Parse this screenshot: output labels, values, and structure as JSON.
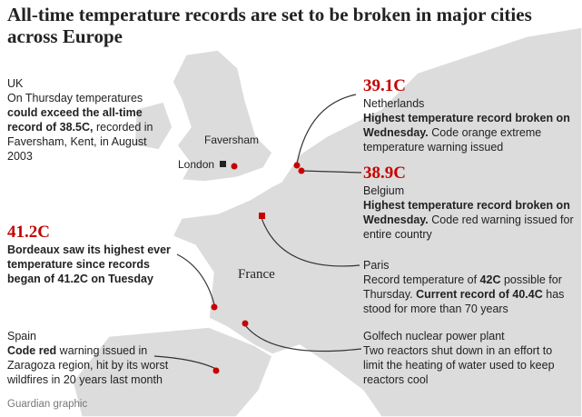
{
  "title": "All-time temperature records are set to be broken in major cities across Europe",
  "map_labels": {
    "faversham": "Faversham",
    "london": "London",
    "france": "France"
  },
  "annotations": [
    {
      "heading": "UK",
      "parts": [
        {
          "text": "On Thursday temperatures",
          "bold": false
        },
        {
          "text": "could exceed the all-time record of 38.5C,",
          "bold": true
        },
        {
          "text": "recorded in Faversham, Kent, in August 2003",
          "bold": false
        }
      ]
    },
    {
      "value": "39.1C",
      "heading": "Netherlands",
      "parts": [
        {
          "text": "Highest temperature record broken on Wednesday.",
          "bold": true
        },
        {
          "text": "Code orange extreme temperature warning issued",
          "bold": false
        }
      ]
    },
    {
      "value": "38.9C",
      "heading": "Belgium",
      "parts": [
        {
          "text": "Highest temperature record broken on Wednesday.",
          "bold": true
        },
        {
          "text": "Code red warning issued for entire country",
          "bold": false
        }
      ]
    },
    {
      "value": "41.2C",
      "parts": [
        {
          "text": "Bordeaux saw its highest ever temperature since records began of 41.2C on Tuesday",
          "bold": true
        }
      ]
    },
    {
      "heading": "Paris",
      "parts": [
        {
          "text": "Record temperature of",
          "bold": false
        },
        {
          "text": "42C",
          "bold": true
        },
        {
          "text": "possible for Thursday.",
          "bold": false
        },
        {
          "text": "Current record of 40.4C",
          "bold": true
        },
        {
          "text": "has stood for more than 70 years",
          "bold": false
        }
      ]
    },
    {
      "heading": "Spain",
      "parts": [
        {
          "text": "Code red",
          "bold": true
        },
        {
          "text": "warning issued in Zaragoza region, hit by its worst wildfires in 20 years last month",
          "bold": false
        }
      ]
    },
    {
      "heading": "Golfech nuclear power plant",
      "parts": [
        {
          "text": "Two reactors shut down in an effort to limit the heating of water used to keep reactors cool",
          "bold": false
        }
      ]
    }
  ],
  "footer": "Guardian graphic"
}
